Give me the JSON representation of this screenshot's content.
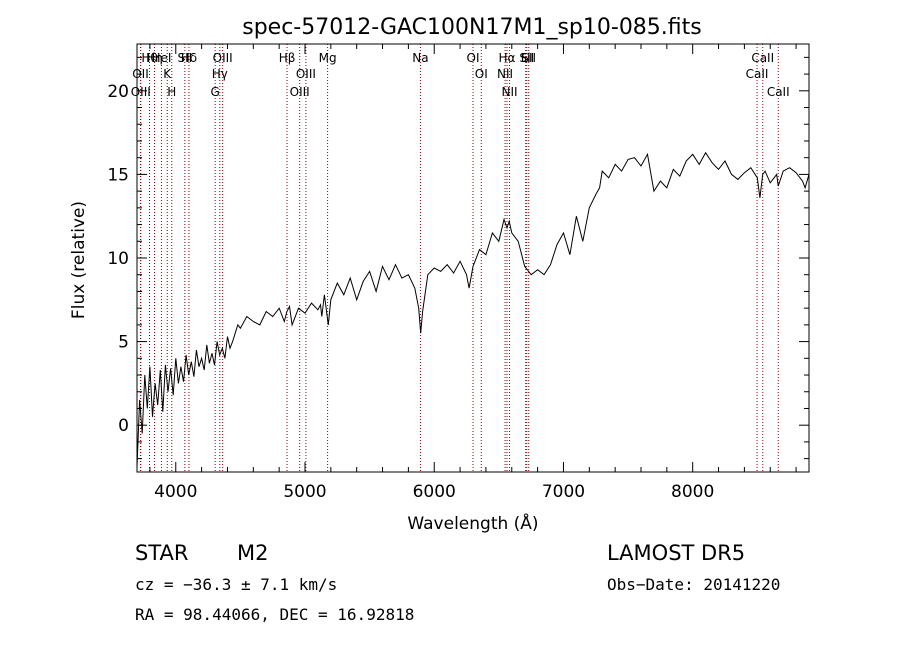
{
  "chart_data": {
    "type": "line",
    "title": "spec-57012-GAC100N17M1_sp10-085.fits",
    "xlabel": "Wavelength (Å)",
    "ylabel": "Flux (relative)",
    "xlim": [
      3700,
      8900
    ],
    "ylim": [
      -2.8,
      22.8
    ],
    "xticks": [
      4000,
      5000,
      6000,
      7000,
      8000
    ],
    "yticks": [
      0,
      5,
      10,
      15,
      20
    ],
    "grid": false,
    "line_color": "#000000",
    "marker_color": "#8b0000",
    "series": [
      {
        "x": [
          3700,
          3720,
          3740,
          3760,
          3780,
          3800,
          3820,
          3840,
          3860,
          3880,
          3900,
          3920,
          3940,
          3960,
          3980,
          4000,
          4020,
          4040,
          4060,
          4080,
          4100,
          4120,
          4140,
          4160,
          4180,
          4200,
          4220,
          4240,
          4260,
          4280,
          4300,
          4320,
          4340,
          4360,
          4380,
          4400,
          4420,
          4440,
          4460,
          4480,
          4500,
          4550,
          4600,
          4650,
          4700,
          4750,
          4800,
          4840,
          4860,
          4880,
          4900,
          4950,
          5000,
          5050,
          5100,
          5120,
          5130,
          5150,
          5180,
          5200,
          5250,
          5300,
          5350,
          5400,
          5450,
          5500,
          5550,
          5600,
          5650,
          5700,
          5750,
          5800,
          5850,
          5880,
          5895,
          5910,
          5950,
          6000,
          6050,
          6100,
          6150,
          6200,
          6250,
          6270,
          6300,
          6350,
          6400,
          6450,
          6500,
          6540,
          6563,
          6580,
          6600,
          6650,
          6700,
          6750,
          6800,
          6850,
          6900,
          6950,
          7000,
          7050,
          7100,
          7150,
          7200,
          7250,
          7280,
          7300,
          7350,
          7400,
          7450,
          7500,
          7550,
          7600,
          7650,
          7700,
          7750,
          7800,
          7850,
          7900,
          7950,
          8000,
          8050,
          8100,
          8150,
          8200,
          8250,
          8300,
          8350,
          8400,
          8450,
          8500,
          8520,
          8542,
          8560,
          8600,
          8650,
          8662,
          8700,
          8750,
          8800,
          8850,
          8870,
          8900
        ],
        "values": [
          -2.5,
          1.5,
          -0.5,
          3.0,
          1.0,
          3.5,
          0.5,
          2.5,
          1.2,
          3.3,
          0.8,
          3.6,
          2.0,
          3.4,
          1.8,
          4.0,
          2.5,
          3.5,
          2.6,
          4.2,
          3.0,
          3.8,
          2.9,
          4.5,
          3.5,
          4.0,
          3.3,
          4.8,
          3.7,
          4.3,
          3.6,
          5.0,
          4.2,
          4.6,
          4.0,
          5.3,
          4.6,
          5.0,
          5.5,
          6.0,
          5.8,
          6.5,
          6.2,
          6.0,
          6.8,
          6.5,
          7.0,
          6.2,
          6.8,
          7.1,
          6.0,
          7.0,
          6.7,
          7.3,
          6.9,
          7.2,
          6.5,
          7.8,
          6.0,
          7.5,
          8.5,
          7.8,
          8.8,
          7.5,
          8.6,
          9.2,
          8.0,
          9.5,
          8.7,
          9.6,
          8.8,
          9.0,
          8.2,
          7.0,
          5.5,
          6.8,
          9.0,
          9.4,
          9.2,
          9.6,
          9.1,
          9.8,
          9.0,
          8.2,
          9.5,
          10.5,
          10.2,
          11.5,
          11.0,
          12.3,
          11.8,
          12.2,
          11.5,
          11.0,
          9.5,
          9.0,
          9.3,
          9.0,
          9.6,
          10.8,
          11.5,
          10.2,
          12.5,
          11.0,
          13.0,
          13.8,
          14.2,
          15.2,
          14.8,
          15.6,
          15.2,
          15.9,
          16.0,
          15.5,
          16.2,
          14.0,
          14.6,
          14.2,
          15.3,
          14.9,
          15.8,
          16.2,
          15.6,
          16.3,
          15.7,
          15.3,
          15.8,
          15.0,
          14.7,
          15.1,
          15.4,
          14.8,
          13.6,
          15.0,
          15.2,
          14.5,
          15.0,
          14.3,
          15.2,
          15.4,
          15.1,
          14.6,
          14.2,
          15.0
        ]
      }
    ],
    "lines": [
      {
        "label": "Hθ",
        "x": 3797
      },
      {
        "label": "OII",
        "x": 3727
      },
      {
        "label": "OIII",
        "x": 3729
      },
      {
        "label": "Hη",
        "x": 3835
      },
      {
        "label": "HeI",
        "x": 3889
      },
      {
        "label": "K",
        "x": 3934
      },
      {
        "label": "H",
        "x": 3969
      },
      {
        "label": "Hδ",
        "x": 4102
      },
      {
        "label": "SII",
        "x": 4070
      },
      {
        "label": "OIII",
        "x": 4363
      },
      {
        "label": "Hγ",
        "x": 4341
      },
      {
        "label": "G",
        "x": 4305
      },
      {
        "label": "Hβ",
        "x": 4861
      },
      {
        "label": "OIII",
        "x": 5007
      },
      {
        "label": "OIII",
        "x": 4959
      },
      {
        "label": "Mg",
        "x": 5175
      },
      {
        "label": "Na",
        "x": 5893
      },
      {
        "label": "OI",
        "x": 6300
      },
      {
        "label": "OI",
        "x": 6364
      },
      {
        "label": "Hα",
        "x": 6563
      },
      {
        "label": "NII",
        "x": 6548
      },
      {
        "label": "NII",
        "x": 6583
      },
      {
        "label": "SII",
        "x": 6716
      },
      {
        "label": "Li",
        "x": 6708
      },
      {
        "label": "SII",
        "x": 6731
      },
      {
        "label": "CaII",
        "x": 8542
      },
      {
        "label": "CaII",
        "x": 8498
      },
      {
        "label": "CaII",
        "x": 8662
      }
    ]
  },
  "info": {
    "class": "STAR",
    "subclass": "M2",
    "survey": "LAMOST DR5",
    "velocity": "cz = −36.3 ± 7.1 km/s",
    "obsdate": "Obs−Date: 20141220",
    "coords": "RA =  98.44066, DEC =  16.92818"
  }
}
